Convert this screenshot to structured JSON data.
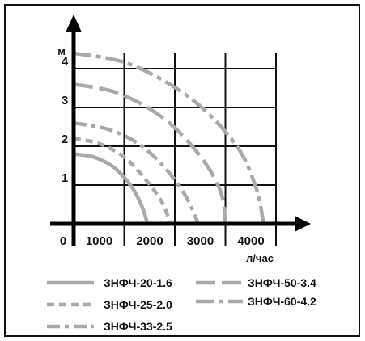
{
  "chart_data": {
    "type": "line",
    "title": "",
    "xlabel": "л/час",
    "ylabel": "м",
    "xlim": [
      0,
      4600
    ],
    "ylim": [
      0,
      5
    ],
    "x_ticks": [
      "1000",
      "2000",
      "3000",
      "4000"
    ],
    "y_ticks": [
      "1",
      "2",
      "3",
      "4"
    ],
    "origin_label": "0",
    "grid": true,
    "legend_position": "bottom",
    "series": [
      {
        "name": "ЗНФЧ-20-1.6",
        "style": "solid",
        "color": "#a9a9a9",
        "points": [
          [
            0,
            1.8
          ],
          [
            400,
            1.72
          ],
          [
            800,
            1.45
          ],
          [
            1150,
            0.95
          ],
          [
            1350,
            0.45
          ],
          [
            1450,
            0.05
          ]
        ]
      },
      {
        "name": "ЗНФЧ-25-2.0",
        "style": "short-dash",
        "color": "#a9a9a9",
        "points": [
          [
            0,
            2.2
          ],
          [
            500,
            2.07
          ],
          [
            1000,
            1.72
          ],
          [
            1450,
            1.1
          ],
          [
            1750,
            0.55
          ],
          [
            1900,
            0.05
          ]
        ]
      },
      {
        "name": "ЗНФЧ-33-2.5",
        "style": "dash-dot",
        "color": "#a9a9a9",
        "points": [
          [
            0,
            2.6
          ],
          [
            700,
            2.43
          ],
          [
            1300,
            2.05
          ],
          [
            1800,
            1.45
          ],
          [
            2200,
            0.75
          ],
          [
            2450,
            0.05
          ]
        ]
      },
      {
        "name": "ЗНФЧ-50-3.4",
        "style": "long-dash",
        "color": "#a9a9a9",
        "points": [
          [
            0,
            3.6
          ],
          [
            900,
            3.36
          ],
          [
            1800,
            2.7
          ],
          [
            2500,
            1.75
          ],
          [
            2900,
            0.85
          ],
          [
            3000,
            0.05
          ]
        ]
      },
      {
        "name": "ЗНФЧ-60-4.2",
        "style": "long-dash-dot",
        "color": "#a9a9a9",
        "points": [
          [
            0,
            4.4
          ],
          [
            1100,
            4.12
          ],
          [
            2300,
            3.25
          ],
          [
            3200,
            2.05
          ],
          [
            3600,
            0.95
          ],
          [
            3750,
            0.05
          ]
        ]
      }
    ]
  }
}
